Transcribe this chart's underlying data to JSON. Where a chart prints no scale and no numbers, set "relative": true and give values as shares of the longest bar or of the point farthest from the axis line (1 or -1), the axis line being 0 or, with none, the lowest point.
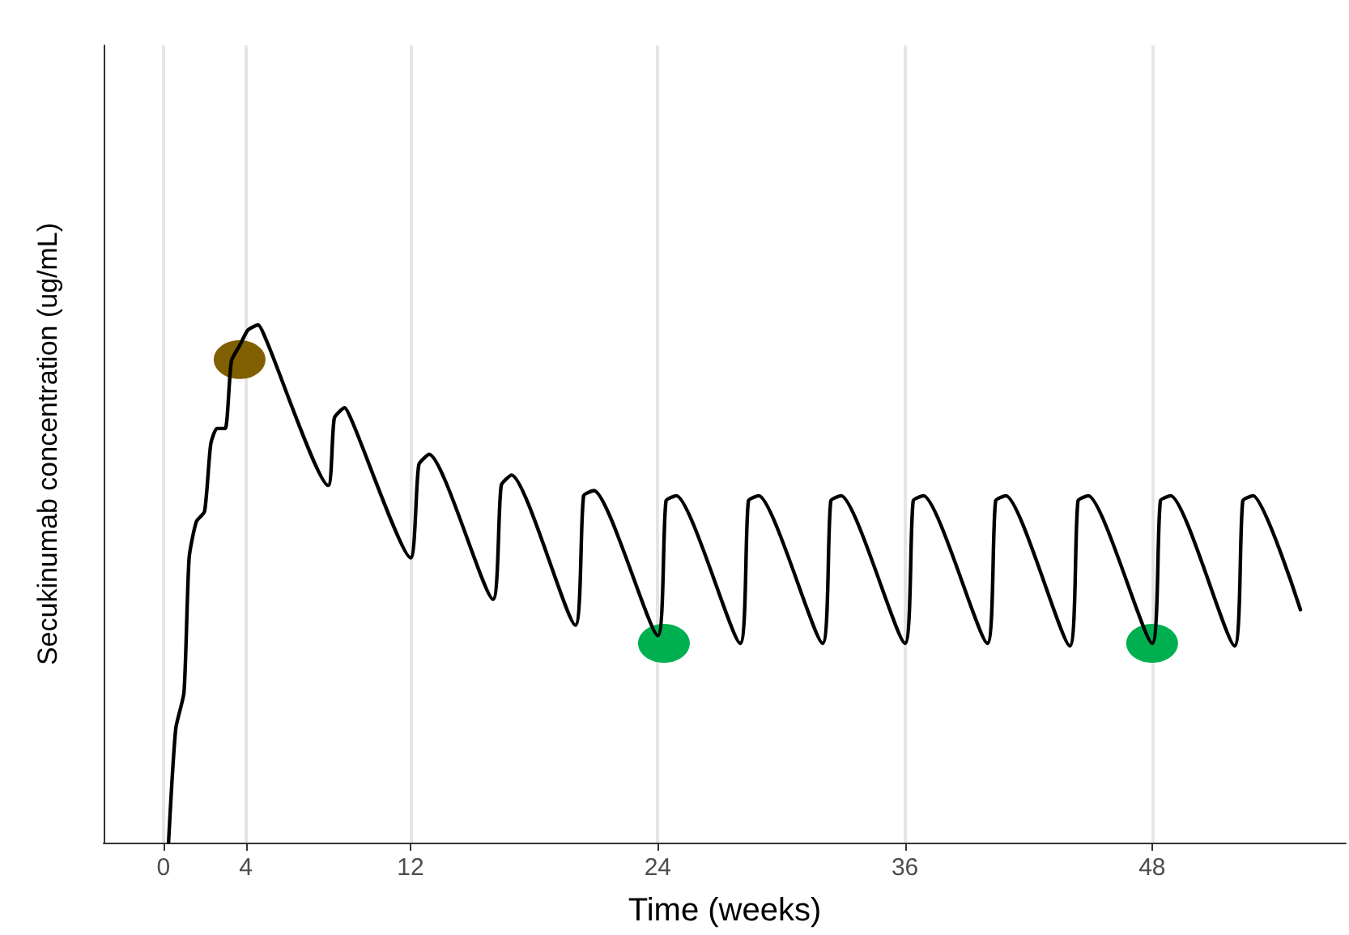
{
  "chart_data": {
    "type": "line",
    "xlabel": "Time (weeks)",
    "ylabel": "Secukinumab concentration (ug/mL)",
    "relative": true,
    "xlim": [
      -2.9,
      57.4
    ],
    "xticks": [
      0,
      4,
      12,
      24,
      36,
      48
    ],
    "grid": "x",
    "marker": "none",
    "line_style": "solid",
    "series": [
      {
        "color": "#000000",
        "x": [
          0.25,
          0.6,
          1.0,
          1.25,
          1.6,
          2.0,
          2.3,
          2.6,
          3.0,
          3.3,
          3.7,
          4.1,
          4.6,
          5.0,
          8.0,
          8.3,
          8.8,
          9.2,
          12.0,
          12.4,
          12.9,
          16.0,
          16.4,
          16.9,
          20.0,
          20.4,
          20.9,
          24.0,
          24.4,
          24.9,
          28.0,
          28.4,
          28.9,
          32.0,
          32.4,
          32.9,
          36.0,
          36.4,
          36.9,
          40.0,
          40.4,
          40.9,
          44.0,
          44.4,
          44.9,
          48.0,
          48.4,
          48.9,
          52.0,
          52.4,
          52.9,
          55.2
        ],
        "values": [
          0,
          0.22,
          0.29,
          0.55,
          0.62,
          0.64,
          0.77,
          0.8,
          0.8,
          0.93,
          0.96,
          0.99,
          1.0,
          0.97,
          0.69,
          0.82,
          0.84,
          0.81,
          0.55,
          0.73,
          0.75,
          0.47,
          0.69,
          0.71,
          0.42,
          0.67,
          0.68,
          0.4,
          0.66,
          0.67,
          0.385,
          0.66,
          0.67,
          0.385,
          0.66,
          0.67,
          0.385,
          0.66,
          0.67,
          0.385,
          0.66,
          0.67,
          0.38,
          0.66,
          0.67,
          0.385,
          0.66,
          0.67,
          0.38,
          0.66,
          0.67,
          0.45
        ]
      },
      {
        "type": "scatter",
        "marker": "circle",
        "color": "#7f5f00",
        "x": [
          3.7
        ],
        "values": [
          0.933
        ]
      },
      {
        "type": "scatter",
        "marker": "circle",
        "color": "#00b050",
        "x": [
          24.3,
          48.0
        ],
        "values": [
          0.385,
          0.385
        ]
      }
    ]
  }
}
